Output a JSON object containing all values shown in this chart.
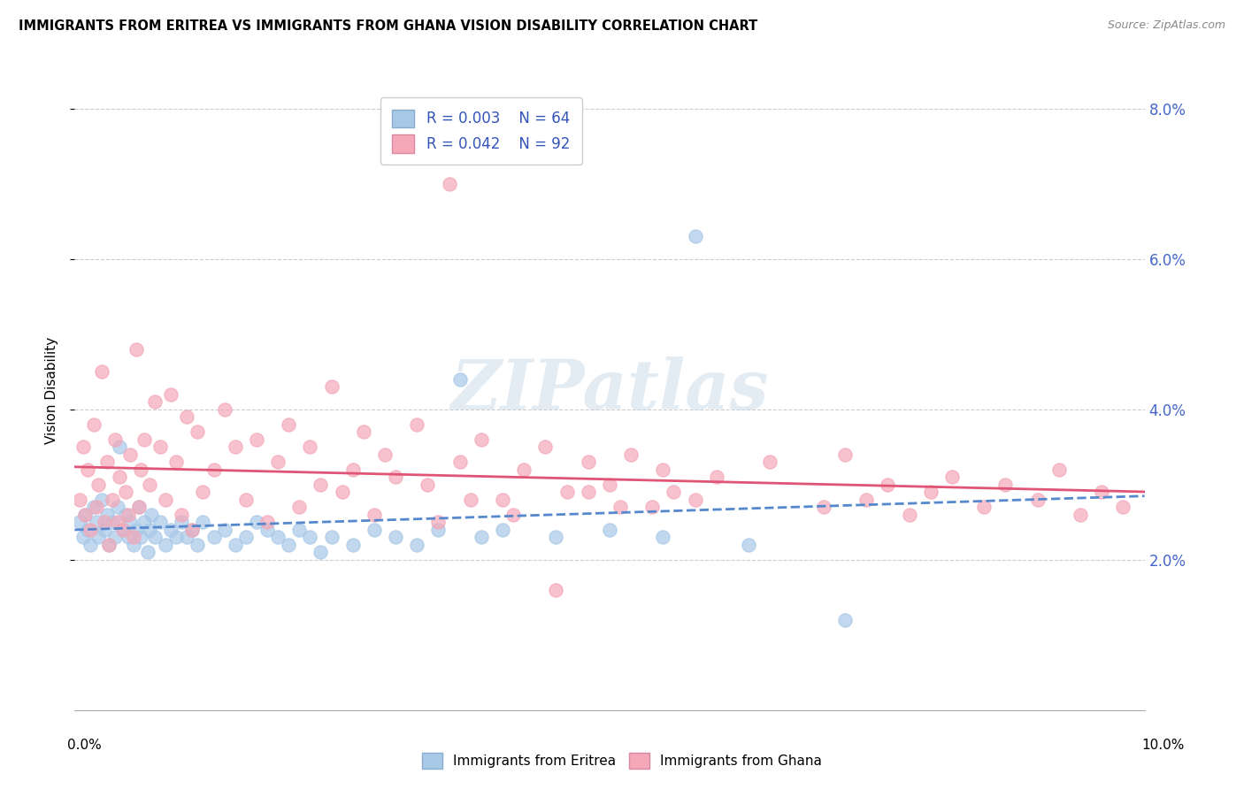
{
  "title": "IMMIGRANTS FROM ERITREA VS IMMIGRANTS FROM GHANA VISION DISABILITY CORRELATION CHART",
  "source": "Source: ZipAtlas.com",
  "ylabel": "Vision Disability",
  "xlim": [
    0.0,
    10.0
  ],
  "ylim": [
    0.0,
    8.5
  ],
  "ytick_vals": [
    2.0,
    4.0,
    6.0,
    8.0
  ],
  "ytick_labels": [
    "2.0%",
    "4.0%",
    "6.0%",
    "8.0%"
  ],
  "legend_r1": "R = 0.003",
  "legend_n1": "N = 64",
  "legend_r2": "R = 0.042",
  "legend_n2": "N = 92",
  "color_eritrea": "#a8c8e8",
  "color_ghana": "#f4a8b8",
  "color_line_eritrea": "#5588cc",
  "color_line_ghana": "#e05575",
  "background_color": "#ffffff",
  "grid_color": "#cccccc",
  "watermark_text": "ZIPatlas",
  "eritrea_x": [
    0.05,
    0.08,
    0.1,
    0.12,
    0.15,
    0.18,
    0.2,
    0.22,
    0.25,
    0.28,
    0.3,
    0.32,
    0.35,
    0.38,
    0.4,
    0.42,
    0.45,
    0.48,
    0.5,
    0.52,
    0.55,
    0.58,
    0.6,
    0.62,
    0.65,
    0.68,
    0.7,
    0.72,
    0.75,
    0.8,
    0.85,
    0.9,
    0.95,
    1.0,
    1.05,
    1.1,
    1.15,
    1.2,
    1.3,
    1.4,
    1.5,
    1.6,
    1.7,
    1.8,
    1.9,
    2.0,
    2.1,
    2.2,
    2.3,
    2.4,
    2.6,
    2.8,
    3.0,
    3.2,
    3.4,
    3.6,
    3.8,
    4.0,
    4.5,
    5.0,
    5.5,
    5.8,
    6.3,
    7.2
  ],
  "eritrea_y": [
    2.5,
    2.3,
    2.6,
    2.4,
    2.2,
    2.7,
    2.5,
    2.3,
    2.8,
    2.4,
    2.6,
    2.2,
    2.5,
    2.3,
    2.7,
    3.5,
    2.4,
    2.6,
    2.3,
    2.5,
    2.2,
    2.4,
    2.7,
    2.3,
    2.5,
    2.1,
    2.4,
    2.6,
    2.3,
    2.5,
    2.2,
    2.4,
    2.3,
    2.5,
    2.3,
    2.4,
    2.2,
    2.5,
    2.3,
    2.4,
    2.2,
    2.3,
    2.5,
    2.4,
    2.3,
    2.2,
    2.4,
    2.3,
    2.1,
    2.3,
    2.2,
    2.4,
    2.3,
    2.2,
    2.4,
    4.4,
    2.3,
    2.4,
    2.3,
    2.4,
    2.3,
    6.3,
    2.2,
    1.2
  ],
  "ghana_x": [
    0.05,
    0.08,
    0.1,
    0.12,
    0.15,
    0.18,
    0.2,
    0.22,
    0.25,
    0.28,
    0.3,
    0.32,
    0.35,
    0.38,
    0.4,
    0.42,
    0.45,
    0.48,
    0.5,
    0.52,
    0.55,
    0.58,
    0.6,
    0.62,
    0.65,
    0.7,
    0.75,
    0.8,
    0.85,
    0.9,
    0.95,
    1.0,
    1.05,
    1.1,
    1.15,
    1.2,
    1.3,
    1.4,
    1.5,
    1.6,
    1.7,
    1.8,
    1.9,
    2.0,
    2.1,
    2.2,
    2.3,
    2.4,
    2.5,
    2.6,
    2.7,
    2.8,
    2.9,
    3.0,
    3.2,
    3.4,
    3.5,
    3.6,
    3.8,
    4.0,
    4.2,
    4.4,
    4.6,
    4.8,
    5.0,
    5.2,
    5.4,
    5.5,
    5.6,
    5.8,
    6.0,
    6.5,
    7.0,
    7.2,
    7.4,
    7.6,
    7.8,
    8.0,
    8.2,
    8.5,
    8.7,
    9.0,
    9.2,
    9.4,
    9.6,
    9.8,
    3.3,
    3.7,
    4.1,
    4.5,
    4.8,
    5.1
  ],
  "ghana_y": [
    2.8,
    3.5,
    2.6,
    3.2,
    2.4,
    3.8,
    2.7,
    3.0,
    4.5,
    2.5,
    3.3,
    2.2,
    2.8,
    3.6,
    2.5,
    3.1,
    2.4,
    2.9,
    2.6,
    3.4,
    2.3,
    4.8,
    2.7,
    3.2,
    3.6,
    3.0,
    4.1,
    3.5,
    2.8,
    4.2,
    3.3,
    2.6,
    3.9,
    2.4,
    3.7,
    2.9,
    3.2,
    4.0,
    3.5,
    2.8,
    3.6,
    2.5,
    3.3,
    3.8,
    2.7,
    3.5,
    3.0,
    4.3,
    2.9,
    3.2,
    3.7,
    2.6,
    3.4,
    3.1,
    3.8,
    2.5,
    7.0,
    3.3,
    3.6,
    2.8,
    3.2,
    3.5,
    2.9,
    3.3,
    3.0,
    3.4,
    2.7,
    3.2,
    2.9,
    2.8,
    3.1,
    3.3,
    2.7,
    3.4,
    2.8,
    3.0,
    2.6,
    2.9,
    3.1,
    2.7,
    3.0,
    2.8,
    3.2,
    2.6,
    2.9,
    2.7,
    3.0,
    2.8,
    2.6,
    1.6,
    2.9,
    2.7
  ]
}
